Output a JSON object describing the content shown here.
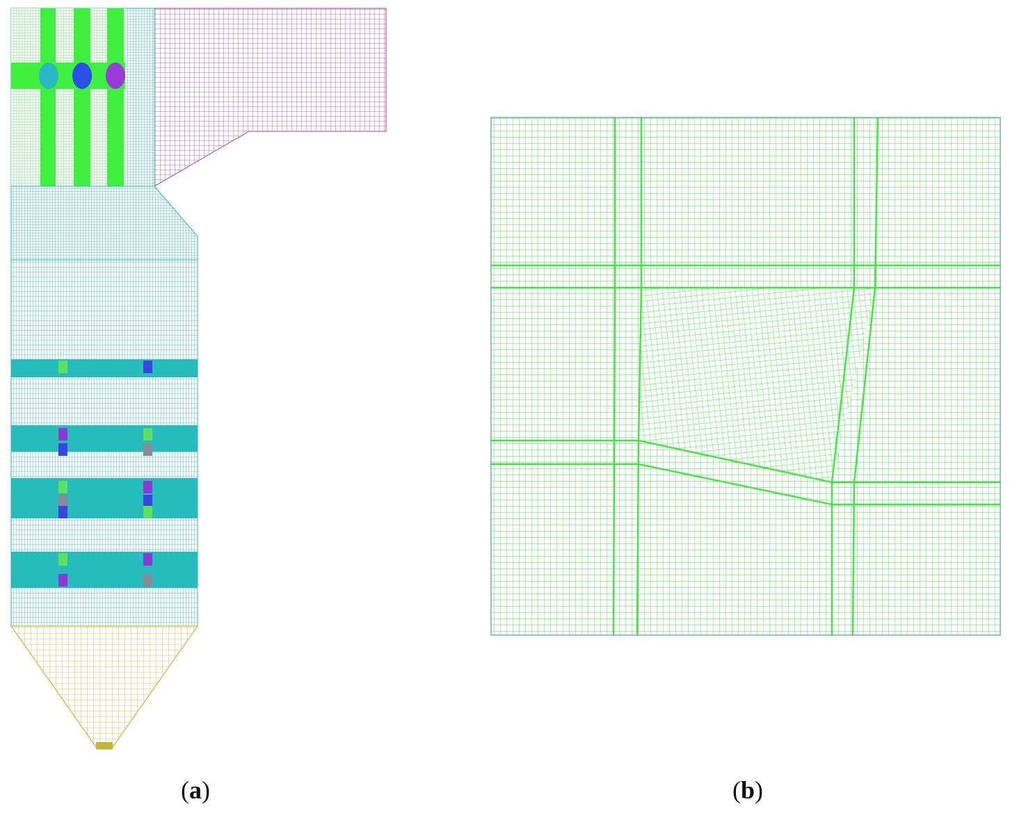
{
  "panels": [
    {
      "id": "a",
      "caption_open": "(",
      "caption_letter": "a",
      "caption_close": ")",
      "parts": [
        "upper-furnace",
        "horizontal-flue",
        "hopper-transition",
        "burner-zone",
        "ash-hopper"
      ]
    },
    {
      "id": "b",
      "caption_open": "(",
      "caption_letter": "b",
      "caption_close": ")",
      "parts": [
        "burner-nozzle-mesh-detail"
      ]
    }
  ],
  "colors": {
    "mesh_cyan": "#22b8b5",
    "mesh_band": "#26bcbc",
    "mesh_green": "#3ff03f",
    "mesh_magenta": "#a23ea8",
    "mesh_yellow": "#c6b43a",
    "nozzle_cyan": "#2bb8c4",
    "nozzle_blue": "#2a4ee6",
    "nozzle_purple": "#9a3ad8",
    "marker_blue": "#3a45e0",
    "marker_purple": "#8a3ad2",
    "marker_green": "#5ee05e",
    "marker_gray": "#8a8a9a",
    "frame": "#4aa0a8"
  }
}
